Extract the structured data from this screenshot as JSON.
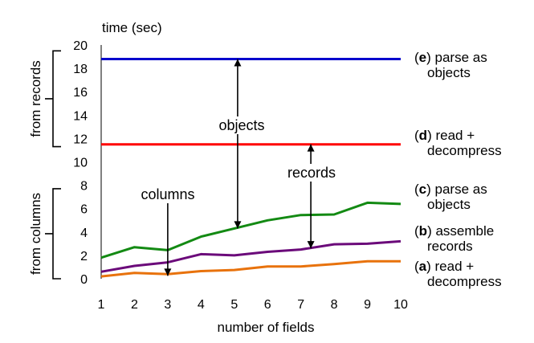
{
  "chart_data": {
    "type": "line",
    "ylabel": "time (sec)",
    "xlabel": "number of fields",
    "x": [
      1,
      2,
      3,
      4,
      5,
      6,
      7,
      8,
      9,
      10
    ],
    "xlim": [
      1,
      10
    ],
    "ylim": [
      0,
      20
    ],
    "yticks": [
      0,
      2,
      4,
      6,
      8,
      10,
      12,
      14,
      16,
      18,
      20
    ],
    "xticks": [
      1,
      2,
      3,
      4,
      5,
      6,
      7,
      8,
      9,
      10
    ],
    "grid": false,
    "series": [
      {
        "key": "e",
        "color": "#0000cc",
        "values": [
          18.8,
          18.8,
          18.8,
          18.8,
          18.8,
          18.8,
          18.8,
          18.8,
          18.8,
          18.8
        ]
      },
      {
        "key": "d",
        "color": "#ff0000",
        "values": [
          11.5,
          11.5,
          11.5,
          11.5,
          11.5,
          11.5,
          11.5,
          11.5,
          11.5,
          11.5
        ]
      },
      {
        "key": "c",
        "color": "#138a13",
        "values": [
          1.8,
          2.7,
          2.45,
          3.6,
          4.3,
          5.0,
          5.45,
          5.5,
          6.5,
          6.4
        ]
      },
      {
        "key": "b",
        "color": "#6b0a7a",
        "values": [
          0.6,
          1.1,
          1.4,
          2.1,
          2.0,
          2.3,
          2.5,
          2.95,
          3.0,
          3.2
        ]
      },
      {
        "key": "a",
        "color": "#e8720c",
        "values": [
          0.2,
          0.5,
          0.4,
          0.65,
          0.75,
          1.05,
          1.05,
          1.25,
          1.5,
          1.5
        ]
      }
    ],
    "series_labels": [
      {
        "key": "e",
        "letter": "e",
        "line1": " parse as",
        "line2": "objects"
      },
      {
        "key": "d",
        "letter": "d",
        "line1": " read +",
        "line2": "decompress"
      },
      {
        "key": "c",
        "letter": "c",
        "line1": " parse as",
        "line2": "objects"
      },
      {
        "key": "b",
        "letter": "b",
        "line1": " assemble",
        "line2": "records"
      },
      {
        "key": "a",
        "letter": "a",
        "line1": " read +",
        "line2": "decompress"
      }
    ],
    "annotations": {
      "objects": {
        "text": "objects",
        "x": 5.1,
        "from": 4.3,
        "to": 18.8
      },
      "records": {
        "text": "records",
        "x": 7.3,
        "from": 2.6,
        "to": 11.5
      },
      "columns": {
        "text": "columns",
        "x": 3.0,
        "from": 7.0,
        "to": 0.25
      }
    },
    "groups": {
      "from_records": "from records",
      "from_columns": "from columns",
      "from_records_range": [
        11.3,
        19.5
      ],
      "from_columns_range": [
        0,
        7.7
      ]
    }
  }
}
